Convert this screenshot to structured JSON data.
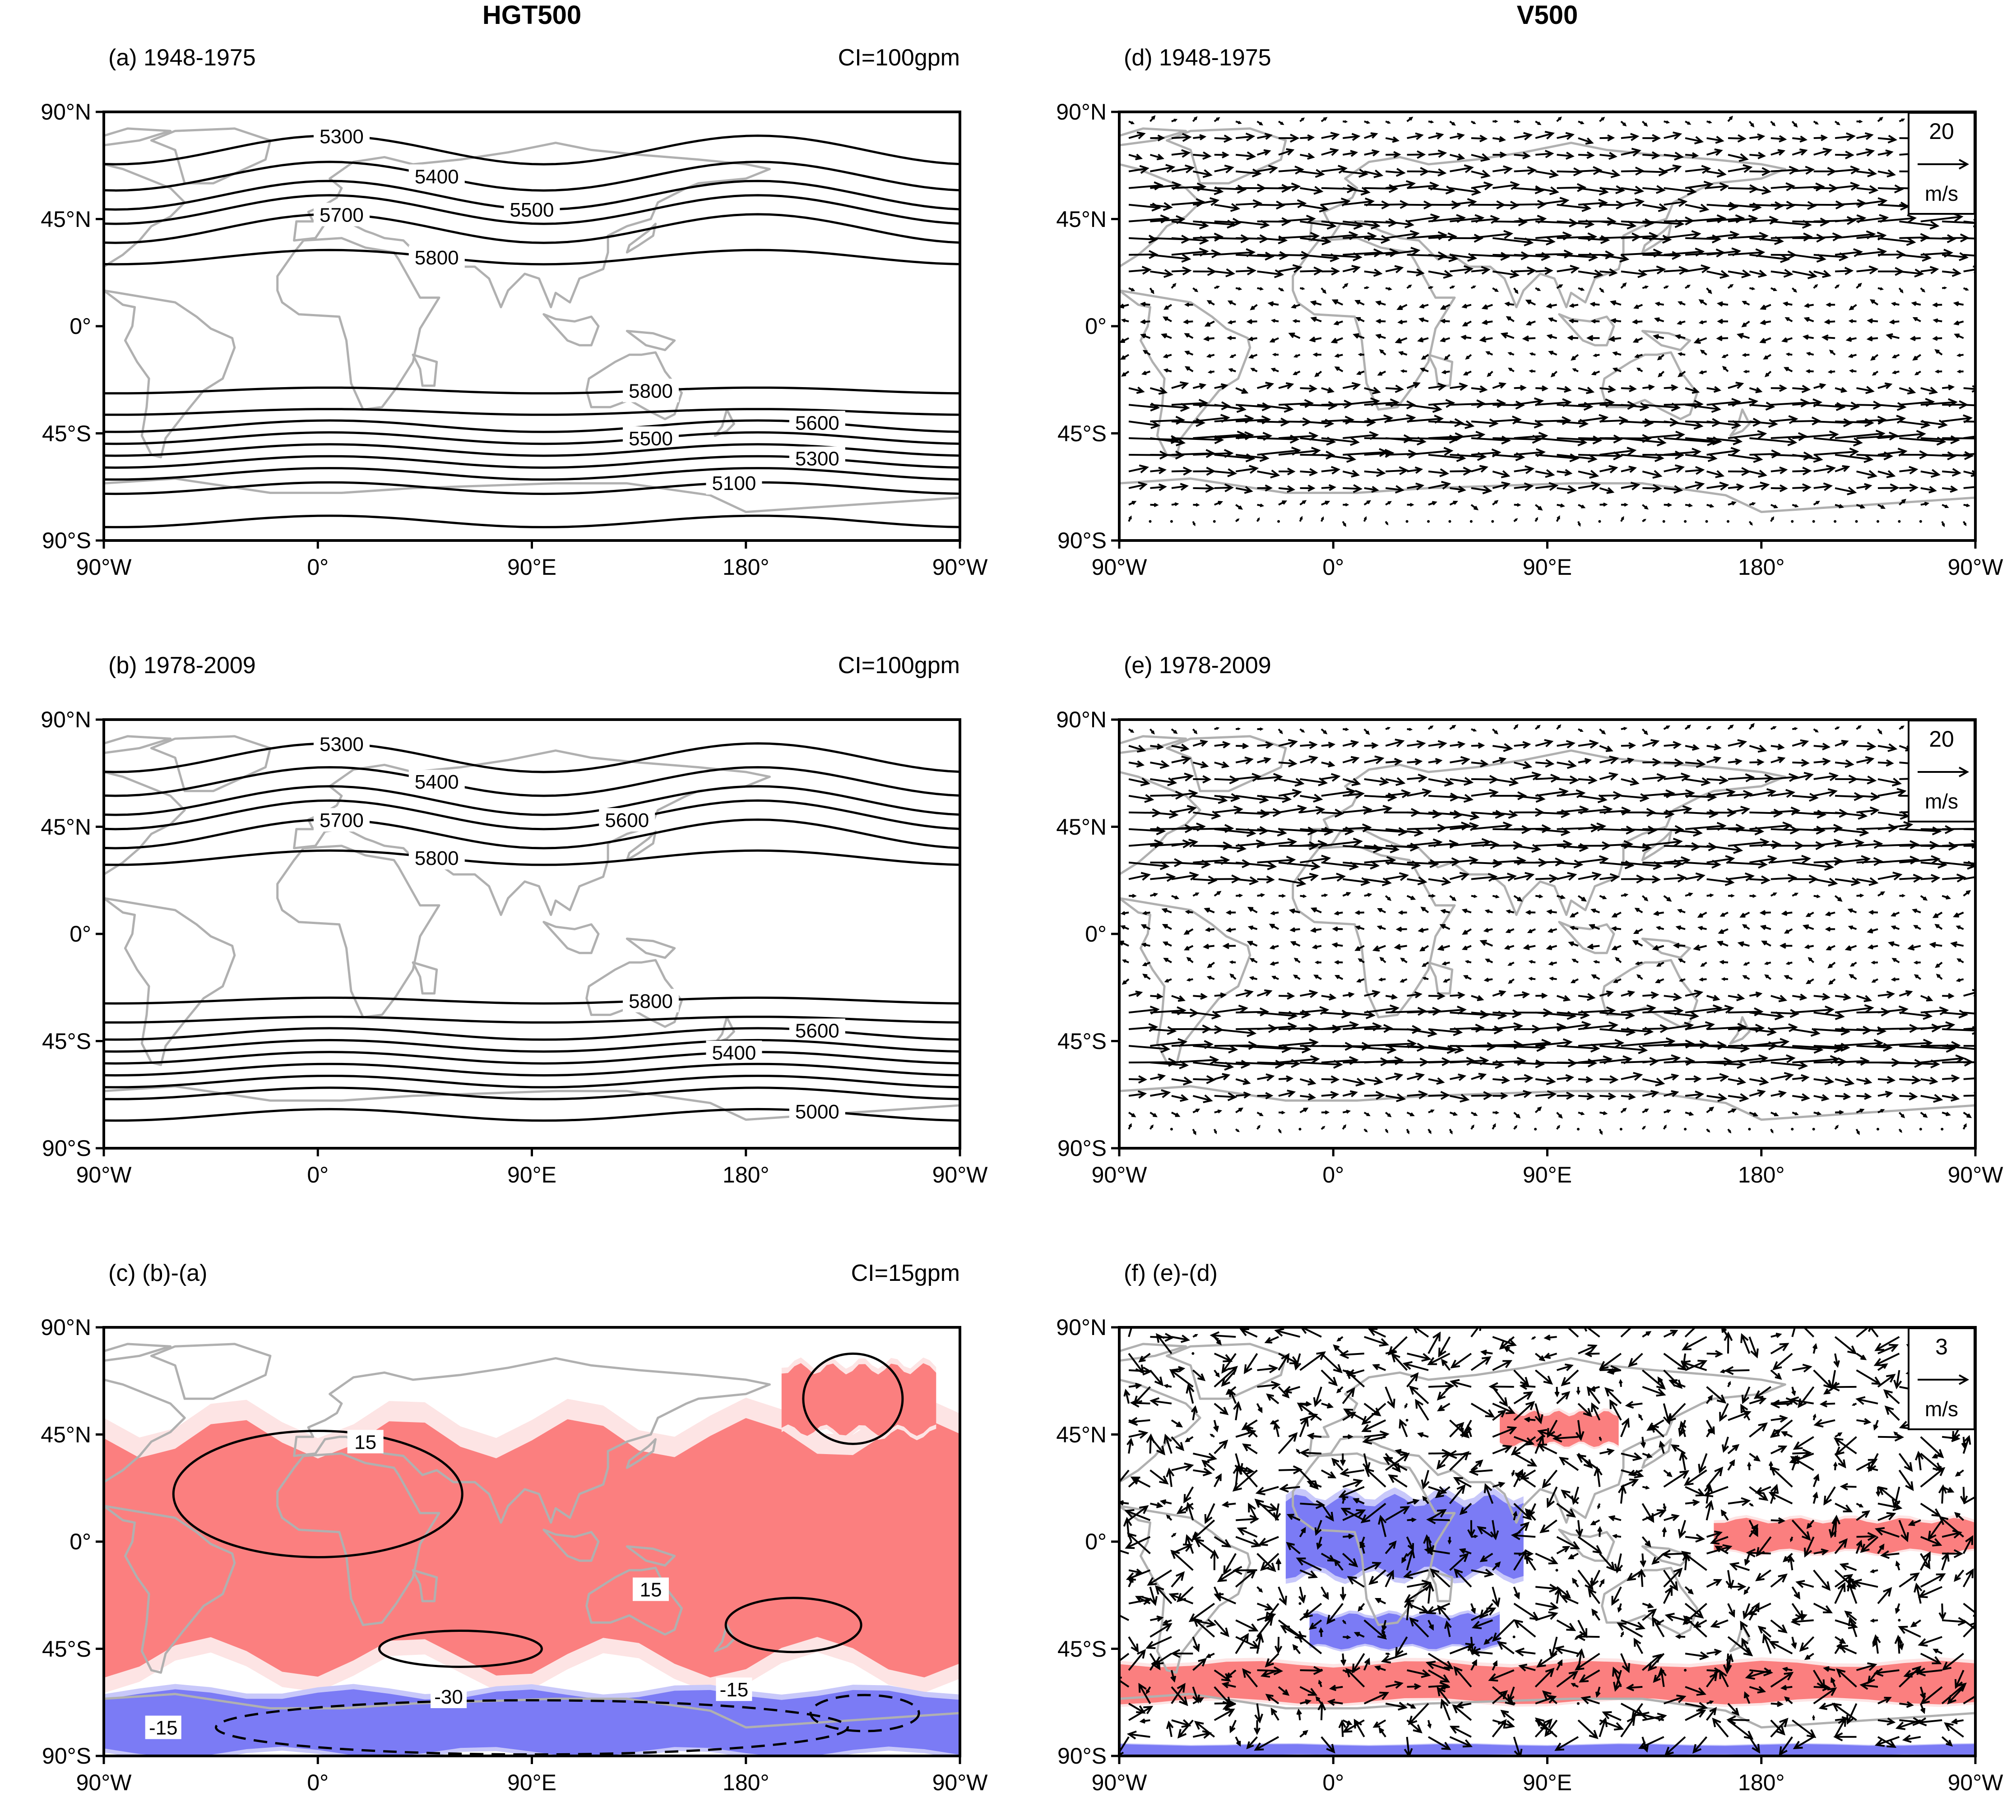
{
  "column_titles": [
    "HGT500",
    "V500"
  ],
  "x_tick_labels": [
    "90°W",
    "0°",
    "90°E",
    "180°",
    "90°W"
  ],
  "y_tick_labels": [
    "90°N",
    "45°N",
    "0°",
    "45°S",
    "90°S"
  ],
  "colors": {
    "positive": "#fb7f7f",
    "positive_light": "#fde4e4",
    "negative": "#7b7bf5",
    "negative_light": "#c8c8fa",
    "coastline": "#b0b0b0"
  },
  "chart_data": [
    {
      "id": "a",
      "type": "contour_map",
      "title": "(a) 1948-1975",
      "interval": "CI=100gpm",
      "variable": "HGT500",
      "units": "gpm",
      "xlim": [
        -90,
        270
      ],
      "ylim": [
        -90,
        90
      ],
      "contours": [
        {
          "level": 5300,
          "lat": 74,
          "label": "5300"
        },
        {
          "level": 5400,
          "lat": 63,
          "label": "5400"
        },
        {
          "level": 5500,
          "lat": 55,
          "label": "5500"
        },
        {
          "level": 5600,
          "lat": 49,
          "label": ""
        },
        {
          "level": 5700,
          "lat": 41,
          "label": "5700"
        },
        {
          "level": 5800,
          "lat": 29,
          "label": "5800"
        },
        {
          "level": 5800,
          "lat": -27,
          "label": "5800"
        },
        {
          "level": 5700,
          "lat": -36,
          "label": ""
        },
        {
          "level": 5600,
          "lat": -42,
          "label": "5600"
        },
        {
          "level": 5500,
          "lat": -47,
          "label": "5500"
        },
        {
          "level": 5400,
          "lat": -52,
          "label": ""
        },
        {
          "level": 5300,
          "lat": -57,
          "label": "5300"
        },
        {
          "level": 5200,
          "lat": -62,
          "label": ""
        },
        {
          "level": 5100,
          "lat": -68,
          "label": "5100"
        },
        {
          "level": 5000,
          "lat": -82,
          "label": ""
        }
      ]
    },
    {
      "id": "b",
      "type": "contour_map",
      "title": "(b) 1978-2009",
      "interval": "CI=100gpm",
      "variable": "HGT500",
      "units": "gpm",
      "xlim": [
        -90,
        270
      ],
      "ylim": [
        -90,
        90
      ],
      "contours": [
        {
          "level": 5300,
          "lat": 74,
          "label": "5300"
        },
        {
          "level": 5400,
          "lat": 64,
          "label": "5400"
        },
        {
          "level": 5500,
          "lat": 56,
          "label": ""
        },
        {
          "level": 5600,
          "lat": 50,
          "label": "5600"
        },
        {
          "level": 5700,
          "lat": 42,
          "label": "5700"
        },
        {
          "level": 5800,
          "lat": 32,
          "label": "5800"
        },
        {
          "level": 5800,
          "lat": -28,
          "label": "5800"
        },
        {
          "level": 5700,
          "lat": -36,
          "label": ""
        },
        {
          "level": 5600,
          "lat": -42,
          "label": "5600"
        },
        {
          "level": 5500,
          "lat": -47,
          "label": ""
        },
        {
          "level": 5400,
          "lat": -52,
          "label": "5400"
        },
        {
          "level": 5300,
          "lat": -57,
          "label": ""
        },
        {
          "level": 5200,
          "lat": -62,
          "label": ""
        },
        {
          "level": 5100,
          "lat": -67,
          "label": ""
        },
        {
          "level": 5000,
          "lat": -76,
          "label": "5000"
        }
      ]
    },
    {
      "id": "c",
      "type": "difference_map",
      "title": "(c) (b)-(a)",
      "interval": "CI=15gpm",
      "variable": "HGT500 difference",
      "units": "gpm",
      "xlim": [
        -90,
        270
      ],
      "ylim": [
        -90,
        90
      ],
      "shading": [
        {
          "sign": "positive",
          "lon_range": [
            -90,
            270
          ],
          "lat_range": [
            -55,
            52
          ]
        },
        {
          "sign": "positive",
          "lon_range": [
            195,
            260
          ],
          "lat_range": [
            45,
            75
          ]
        },
        {
          "sign": "negative",
          "lon_range": [
            -90,
            270
          ],
          "lat_range": [
            -90,
            -62
          ]
        }
      ],
      "contour_labels": [
        "15",
        "15",
        "-30",
        "-15",
        "-15"
      ]
    },
    {
      "id": "d",
      "type": "vector_map",
      "title": "(d) 1948-1975",
      "variable": "V500",
      "units": "m/s",
      "reference_vector": "20",
      "reference_unit": "m/s",
      "xlim": [
        -90,
        270
      ],
      "ylim": [
        -90,
        90
      ],
      "zonal_wind_profile": [
        {
          "lat": 85,
          "u": 2
        },
        {
          "lat": 75,
          "u": 8
        },
        {
          "lat": 65,
          "u": 11
        },
        {
          "lat": 55,
          "u": 14
        },
        {
          "lat": 45,
          "u": 18
        },
        {
          "lat": 35,
          "u": 17
        },
        {
          "lat": 25,
          "u": 11
        },
        {
          "lat": 15,
          "u": 2
        },
        {
          "lat": 5,
          "u": -4
        },
        {
          "lat": -5,
          "u": -5
        },
        {
          "lat": -15,
          "u": -3
        },
        {
          "lat": -25,
          "u": 7
        },
        {
          "lat": -35,
          "u": 16
        },
        {
          "lat": -45,
          "u": 22
        },
        {
          "lat": -55,
          "u": 19
        },
        {
          "lat": -65,
          "u": 9
        },
        {
          "lat": -75,
          "u": 3
        },
        {
          "lat": -85,
          "u": 1
        }
      ]
    },
    {
      "id": "e",
      "type": "vector_map",
      "title": "(e) 1978-2009",
      "variable": "V500",
      "units": "m/s",
      "reference_vector": "20",
      "reference_unit": "m/s",
      "xlim": [
        -90,
        270
      ],
      "ylim": [
        -90,
        90
      ],
      "zonal_wind_profile": [
        {
          "lat": 85,
          "u": 2
        },
        {
          "lat": 75,
          "u": 8
        },
        {
          "lat": 65,
          "u": 11
        },
        {
          "lat": 55,
          "u": 14
        },
        {
          "lat": 45,
          "u": 18
        },
        {
          "lat": 35,
          "u": 17
        },
        {
          "lat": 25,
          "u": 11
        },
        {
          "lat": 15,
          "u": 3
        },
        {
          "lat": 5,
          "u": -4
        },
        {
          "lat": -5,
          "u": -5
        },
        {
          "lat": -15,
          "u": -3
        },
        {
          "lat": -25,
          "u": 7
        },
        {
          "lat": -35,
          "u": 17
        },
        {
          "lat": -45,
          "u": 23
        },
        {
          "lat": -55,
          "u": 20
        },
        {
          "lat": -65,
          "u": 9
        },
        {
          "lat": -75,
          "u": 3
        },
        {
          "lat": -85,
          "u": 1
        }
      ]
    },
    {
      "id": "f",
      "type": "difference_vector_map",
      "title": "(f) (e)-(d)",
      "variable": "V500 difference",
      "units": "m/s",
      "reference_vector": "3",
      "reference_unit": "m/s",
      "xlim": [
        -90,
        270
      ],
      "ylim": [
        -90,
        90
      ],
      "shading": [
        {
          "sign": "positive",
          "lon_range": [
            -90,
            270
          ],
          "lat_range": [
            -68,
            -50
          ]
        },
        {
          "sign": "positive",
          "lon_range": [
            160,
            270
          ],
          "lat_range": [
            -5,
            10
          ]
        },
        {
          "sign": "positive",
          "lon_range": [
            70,
            120
          ],
          "lat_range": [
            40,
            55
          ]
        },
        {
          "sign": "negative",
          "lon_range": [
            -20,
            80
          ],
          "lat_range": [
            -15,
            20
          ]
        },
        {
          "sign": "negative",
          "lon_range": [
            -10,
            70
          ],
          "lat_range": [
            -45,
            -30
          ]
        },
        {
          "sign": "negative",
          "lon_range": [
            -90,
            270
          ],
          "lat_range": [
            -90,
            -85
          ]
        }
      ]
    }
  ]
}
